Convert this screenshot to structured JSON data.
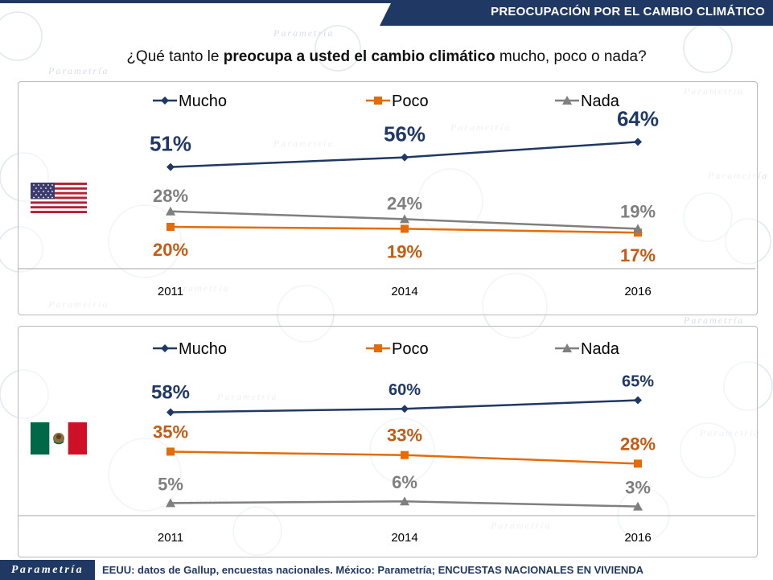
{
  "header": {
    "title": "PREOCUPACIÓN POR EL CAMBIO CLIMÁTICO"
  },
  "question": {
    "prefix": "¿Qué tanto le ",
    "bold": "preocupa a usted el cambio climático",
    "suffix": " mucho, poco o nada?"
  },
  "footer": {
    "logo": "Parametría",
    "source": "EEUU: datos de Gallup, encuestas nacionales. México: Parametría; ENCUESTAS NACIONALES EN VIVIENDA"
  },
  "watermark_text": "Parametría",
  "flags": {
    "us": "us-flag-icon",
    "mx": "mexico-flag-icon"
  },
  "colors": {
    "header_bar": "#1f3864",
    "mucho": "#1f3864",
    "poco": "#e36c09",
    "nada": "#7f7f7f",
    "label_mucho": "#1f3864",
    "label_poco": "#c55a11",
    "label_nada": "#7f7f7f"
  },
  "chart_data": [
    {
      "type": "line",
      "country": "EEUU",
      "categories": [
        "2011",
        "2014",
        "2016"
      ],
      "series": [
        {
          "name": "Mucho",
          "values": [
            51,
            56,
            64
          ],
          "labels": [
            "51%",
            "56%",
            "64%"
          ],
          "marker": "diamond"
        },
        {
          "name": "Poco",
          "values": [
            20,
            19,
            17
          ],
          "labels": [
            "20%",
            "19%",
            "17%"
          ],
          "marker": "square"
        },
        {
          "name": "Nada",
          "values": [
            28,
            24,
            19
          ],
          "labels": [
            "28%",
            "24%",
            "19%"
          ],
          "marker": "triangle"
        }
      ],
      "legend": "top",
      "grid": false
    },
    {
      "type": "line",
      "country": "México",
      "categories": [
        "2011",
        "2014",
        "2016"
      ],
      "series": [
        {
          "name": "Mucho",
          "values": [
            58,
            60,
            65
          ],
          "labels": [
            "58%",
            "60%",
            "65%"
          ],
          "marker": "diamond"
        },
        {
          "name": "Poco",
          "values": [
            35,
            33,
            28
          ],
          "labels": [
            "35%",
            "33%",
            "28%"
          ],
          "marker": "square"
        },
        {
          "name": "Nada",
          "values": [
            5,
            6,
            3
          ],
          "labels": [
            "5%",
            "6%",
            "3%"
          ],
          "marker": "triangle"
        }
      ],
      "legend": "top",
      "grid": false
    }
  ]
}
